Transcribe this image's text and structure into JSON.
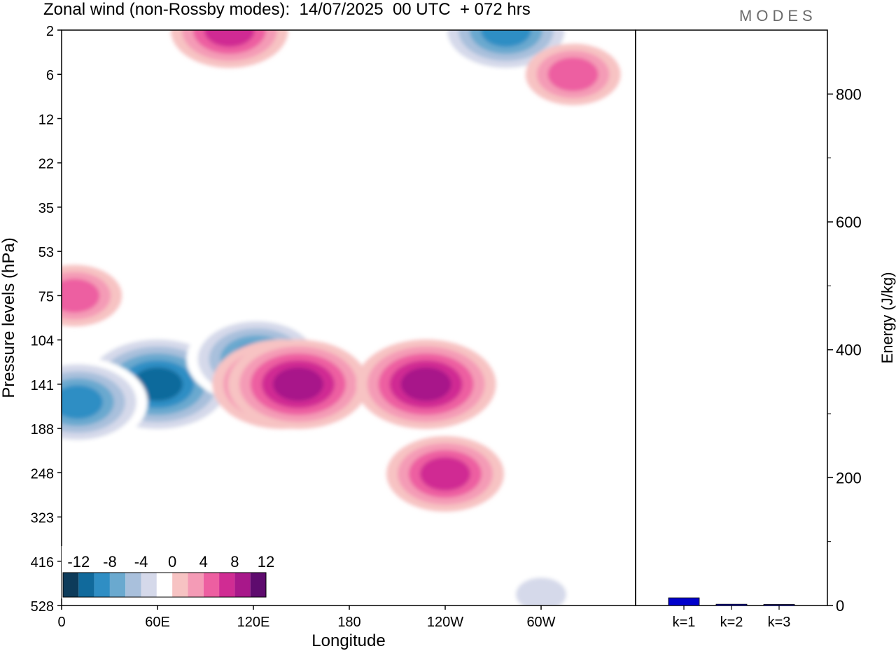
{
  "header": {
    "title": "Zonal wind (non-Rossby modes):  14/07/2025  00 UTC  + 072 hrs",
    "logo": "MODES"
  },
  "colors": {
    "scale": [
      "#0d3b5a",
      "#116a9c",
      "#2f8ec4",
      "#6aa9cf",
      "#a9c0dc",
      "#d5d9ea",
      "#ffffff",
      "#f7c3c3",
      "#f49bb6",
      "#ed5fa1",
      "#d02c93",
      "#a8188a",
      "#5e0b6e"
    ],
    "bar": "#0000cc"
  },
  "chart_data": [
    {
      "type": "heatmap",
      "title": "Zonal wind (non-Rossby modes):  14/07/2025  00 UTC  + 072 hrs",
      "xlabel": "Longitude",
      "ylabel": "Pressure levels (hPa)",
      "x_ticks": [
        "0",
        "60E",
        "120E",
        "180",
        "120W",
        "60W"
      ],
      "y_ticks": [
        "2",
        "6",
        "12",
        "22",
        "35",
        "53",
        "75",
        "104",
        "141",
        "188",
        "248",
        "323",
        "416",
        "528"
      ],
      "colorbar": {
        "tick_labels": [
          "-12",
          "-8",
          "-4",
          "0",
          "4",
          "8",
          "12"
        ],
        "levels": [
          -12,
          -10,
          -8,
          -6,
          -4,
          -2,
          2,
          4,
          6,
          8,
          10,
          12
        ]
      },
      "features": [
        {
          "lon": 60,
          "level": 141,
          "value": -15
        },
        {
          "lon": 10,
          "level": 160,
          "value": -10
        },
        {
          "lon": 122,
          "level": 120,
          "value": -9
        },
        {
          "lon": 138,
          "level": 141,
          "value": 9
        },
        {
          "lon": 148,
          "level": 141,
          "value": 9
        },
        {
          "lon": 228,
          "level": 141,
          "value": 10
        },
        {
          "lon": 240,
          "level": 250,
          "value": 7
        },
        {
          "lon": 8,
          "level": 75,
          "value": 6
        },
        {
          "lon": 278,
          "level": 2,
          "value": -9
        },
        {
          "lon": 105,
          "level": 2,
          "value": 8
        },
        {
          "lon": 320,
          "level": 6,
          "value": 6
        },
        {
          "lon": 300,
          "level": 500,
          "value": -3
        }
      ]
    },
    {
      "type": "bar",
      "ylabel": "Energy (J/kg)",
      "categories": [
        "k=1",
        "k=2",
        "k=3"
      ],
      "values": [
        12,
        2,
        1.5
      ],
      "ylim": [
        0,
        900
      ],
      "y_ticks": [
        "0",
        "200",
        "400",
        "600",
        "800"
      ]
    }
  ]
}
